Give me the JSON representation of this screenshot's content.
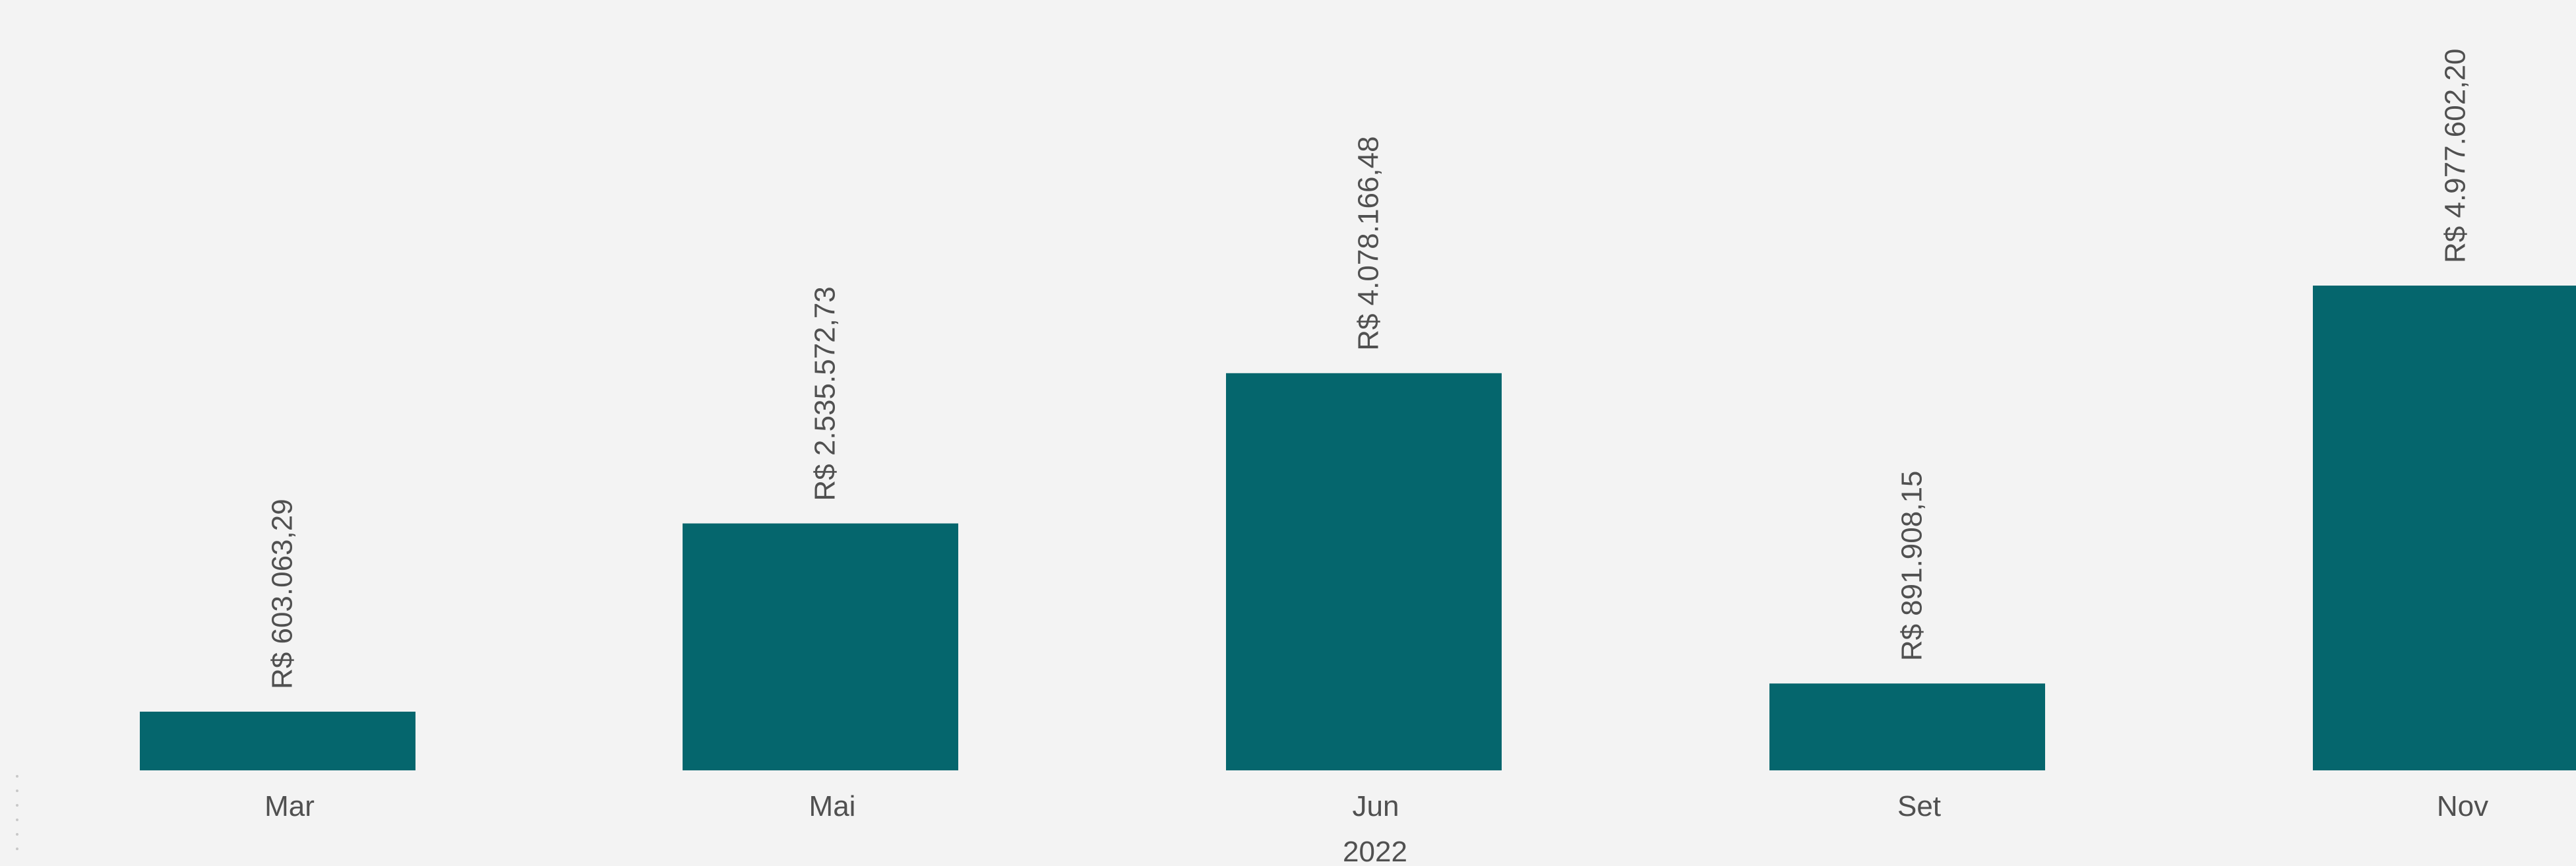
{
  "chart_data": {
    "type": "bar",
    "categories": [
      "Mar",
      "Mai",
      "Jun",
      "Set",
      "Nov"
    ],
    "values": [
      603063.29,
      2535572.73,
      4078166.48,
      891908.15,
      4977602.2
    ],
    "data_labels": [
      "R$ 603.063,29",
      "R$ 2.535.572,73",
      "R$ 4.078.166,48",
      "R$ 891.908,15",
      "R$ 4.977.602,20"
    ],
    "xlabel": "2022",
    "ylabel": "",
    "ylim": [
      0,
      4977602.2
    ],
    "grid": false,
    "legend": "none",
    "bar_color": "#05666d",
    "text_color": "#505050",
    "background_color": "#f3f3f3"
  }
}
